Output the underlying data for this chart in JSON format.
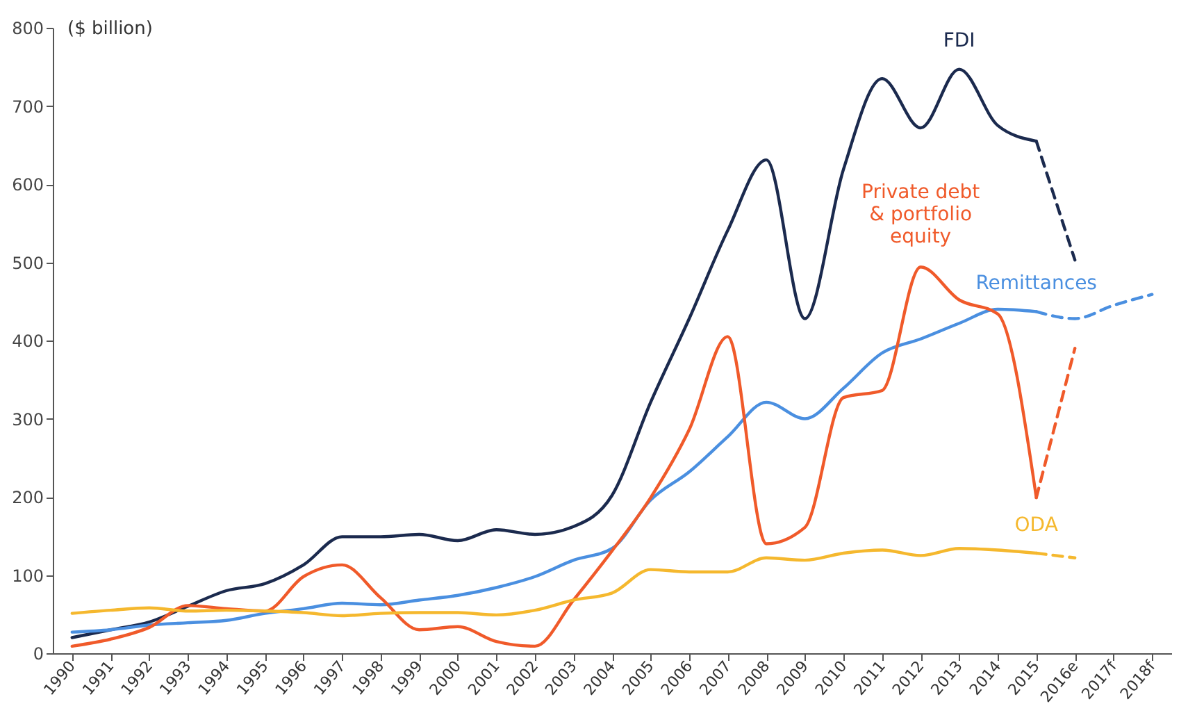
{
  "chart_data": {
    "type": "line",
    "ylabel": "($ billion)",
    "categories": [
      "1990",
      "1991",
      "1992",
      "1993",
      "1994",
      "1995",
      "1996",
      "1997",
      "1998",
      "1999",
      "2000",
      "2001",
      "2002",
      "2003",
      "2004",
      "2005",
      "2006",
      "2007",
      "2008",
      "2009",
      "2010",
      "2011",
      "2012",
      "2013",
      "2014",
      "2015",
      "2016e",
      "2017f",
      "2018f"
    ],
    "series": [
      {
        "name": "FDI",
        "color": "#1b2a4e",
        "line_style": "solid",
        "values": [
          20,
          30,
          40,
          60,
          80,
          89,
          113,
          149,
          149,
          152,
          144,
          158,
          152,
          162,
          202,
          321,
          428,
          541,
          631,
          428,
          619,
          735,
          672,
          747,
          675,
          655,
          null,
          null,
          null
        ]
      },
      {
        "color": "#1b2a4e",
        "line_style": "dashed",
        "values": [
          null,
          null,
          null,
          null,
          null,
          null,
          null,
          null,
          null,
          null,
          null,
          null,
          null,
          null,
          null,
          null,
          null,
          null,
          null,
          null,
          null,
          null,
          null,
          null,
          null,
          655,
          503,
          null,
          null
        ]
      },
      {
        "name": "Remittances",
        "color": "#4a8fe0",
        "line_style": "solid",
        "values": [
          27,
          30,
          36,
          39,
          42,
          51,
          57,
          64,
          62,
          68,
          74,
          84,
          98,
          119,
          134,
          196,
          232,
          277,
          321,
          300,
          339,
          384,
          402,
          422,
          440,
          437,
          null,
          null,
          null
        ]
      },
      {
        "color": "#4a8fe0",
        "line_style": "dashed",
        "values": [
          null,
          null,
          null,
          null,
          null,
          null,
          null,
          null,
          null,
          null,
          null,
          null,
          null,
          null,
          null,
          null,
          null,
          null,
          null,
          null,
          null,
          null,
          null,
          null,
          null,
          437,
          428,
          445,
          459
        ]
      },
      {
        "name": "Private debt & portfolio equity",
        "color": "#f05a2a",
        "line_style": "solid",
        "values": [
          9,
          18,
          33,
          61,
          57,
          54,
          98,
          113,
          71,
          30,
          34,
          15,
          9,
          68,
          131,
          199,
          286,
          405,
          140,
          161,
          327,
          336,
          494,
          452,
          434,
          199,
          null,
          null,
          null
        ]
      },
      {
        "color": "#f05a2a",
        "line_style": "dashed",
        "values": [
          null,
          null,
          null,
          null,
          null,
          null,
          null,
          null,
          null,
          null,
          null,
          null,
          null,
          null,
          null,
          null,
          null,
          null,
          null,
          null,
          null,
          null,
          null,
          null,
          null,
          199,
          390,
          null,
          null
        ]
      },
      {
        "name": "ODA",
        "color": "#f5b82e",
        "line_style": "solid",
        "values": [
          51,
          55,
          58,
          54,
          55,
          54,
          52,
          48,
          51,
          52,
          52,
          49,
          55,
          68,
          77,
          107,
          104,
          104,
          122,
          119,
          128,
          132,
          125,
          134,
          132,
          128,
          null,
          null,
          null
        ]
      },
      {
        "color": "#f5b82e",
        "line_style": "dashed",
        "values": [
          null,
          null,
          null,
          null,
          null,
          null,
          null,
          null,
          null,
          null,
          null,
          null,
          null,
          null,
          null,
          null,
          null,
          null,
          null,
          null,
          null,
          null,
          null,
          null,
          null,
          128,
          122,
          null,
          null
        ]
      }
    ],
    "ylim": [
      0,
      800
    ],
    "yticks": [
      0,
      100,
      200,
      300,
      400,
      500,
      600,
      700,
      800
    ],
    "grid": false
  }
}
